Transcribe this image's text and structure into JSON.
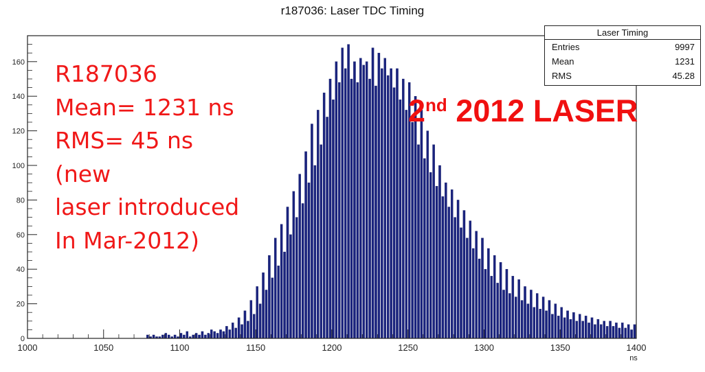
{
  "chart_data": {
    "type": "bar",
    "title": "r187036: Laser TDC Timing",
    "xlabel": "ns",
    "ylabel": "",
    "xlim": [
      1000,
      1400
    ],
    "ylim": [
      0,
      175
    ],
    "xticks": [
      "1000",
      "1050",
      "1100",
      "1150",
      "1200",
      "1250",
      "1300",
      "1350",
      "1400"
    ],
    "yticks": [
      "0",
      "20",
      "40",
      "60",
      "80",
      "100",
      "120",
      "140",
      "160"
    ],
    "series": [
      {
        "name": "Laser Timing",
        "color": "#1a237e",
        "bin_width": 2,
        "x": [
          1000,
          1002,
          1004,
          1006,
          1008,
          1010,
          1012,
          1014,
          1016,
          1018,
          1020,
          1022,
          1024,
          1026,
          1028,
          1030,
          1032,
          1034,
          1036,
          1038,
          1040,
          1042,
          1044,
          1046,
          1048,
          1050,
          1052,
          1054,
          1056,
          1058,
          1060,
          1062,
          1064,
          1066,
          1068,
          1070,
          1072,
          1074,
          1076,
          1078,
          1080,
          1082,
          1084,
          1086,
          1088,
          1090,
          1092,
          1094,
          1096,
          1098,
          1100,
          1102,
          1104,
          1106,
          1108,
          1110,
          1112,
          1114,
          1116,
          1118,
          1120,
          1122,
          1124,
          1126,
          1128,
          1130,
          1132,
          1134,
          1136,
          1138,
          1140,
          1142,
          1144,
          1146,
          1148,
          1150,
          1152,
          1154,
          1156,
          1158,
          1160,
          1162,
          1164,
          1166,
          1168,
          1170,
          1172,
          1174,
          1176,
          1178,
          1180,
          1182,
          1184,
          1186,
          1188,
          1190,
          1192,
          1194,
          1196,
          1198,
          1200,
          1202,
          1204,
          1206,
          1208,
          1210,
          1212,
          1214,
          1216,
          1218,
          1220,
          1222,
          1224,
          1226,
          1228,
          1230,
          1232,
          1234,
          1236,
          1238,
          1240,
          1242,
          1244,
          1246,
          1248,
          1250,
          1252,
          1254,
          1256,
          1258,
          1260,
          1262,
          1264,
          1266,
          1268,
          1270,
          1272,
          1274,
          1276,
          1278,
          1280,
          1282,
          1284,
          1286,
          1288,
          1290,
          1292,
          1294,
          1296,
          1298,
          1300,
          1302,
          1304,
          1306,
          1308,
          1310,
          1312,
          1314,
          1316,
          1318,
          1320,
          1322,
          1324,
          1326,
          1328,
          1330,
          1332,
          1334,
          1336,
          1338,
          1340,
          1342,
          1344,
          1346,
          1348,
          1350,
          1352,
          1354,
          1356,
          1358,
          1360,
          1362,
          1364,
          1366,
          1368,
          1370,
          1372,
          1374,
          1376,
          1378,
          1380,
          1382,
          1384,
          1386,
          1388,
          1390,
          1392,
          1394,
          1396,
          1398
        ],
        "values": [
          0,
          0,
          0,
          0,
          0,
          0,
          0,
          0,
          0,
          0,
          0,
          0,
          0,
          0,
          0,
          0,
          0,
          0,
          0,
          0,
          0,
          0,
          0,
          0,
          0,
          0,
          0,
          0,
          0,
          0,
          0,
          0,
          0,
          0,
          0,
          0,
          0,
          0,
          0,
          2,
          1,
          2,
          1,
          1,
          2,
          3,
          2,
          1,
          2,
          1,
          3,
          2,
          4,
          1,
          2,
          3,
          2,
          4,
          2,
          3,
          5,
          4,
          3,
          5,
          4,
          7,
          5,
          9,
          6,
          12,
          8,
          16,
          10,
          22,
          14,
          30,
          20,
          38,
          28,
          48,
          35,
          58,
          42,
          66,
          50,
          76,
          60,
          85,
          70,
          95,
          78,
          108,
          90,
          124,
          100,
          132,
          112,
          142,
          128,
          150,
          138,
          160,
          148,
          168,
          156,
          170,
          150,
          160,
          148,
          162,
          158,
          160,
          150,
          168,
          146,
          165,
          156,
          162,
          152,
          156,
          145,
          156,
          138,
          150,
          132,
          148,
          125,
          140,
          112,
          132,
          104,
          120,
          96,
          112,
          88,
          100,
          82,
          90,
          76,
          86,
          70,
          80,
          64,
          74,
          58,
          68,
          52,
          62,
          46,
          58,
          40,
          52,
          36,
          48,
          32,
          44,
          28,
          40,
          26,
          36,
          24,
          34,
          22,
          30,
          20,
          28,
          18,
          26,
          17,
          24,
          16,
          22,
          14,
          20,
          13,
          18,
          12,
          16,
          11,
          15,
          10,
          14,
          10,
          13,
          9,
          12,
          8,
          11,
          8,
          10,
          7,
          10,
          7,
          9,
          6,
          9,
          6,
          8,
          5,
          8
        ]
      }
    ],
    "grid": false
  },
  "stats_box": {
    "header": "Laser Timing",
    "rows": [
      {
        "label": "Entries",
        "value": "9997"
      },
      {
        "label": "Mean",
        "value": "1231"
      },
      {
        "label": "RMS",
        "value": "45.28"
      }
    ]
  },
  "annotation": {
    "lines": [
      "R187036",
      "Mean= 1231 ns",
      "RMS= 45 ns",
      "(new",
      "laser introduced",
      "In Mar-2012)"
    ],
    "color": "#f01818"
  },
  "laser_label": {
    "ordinal": "2",
    "ordinal_suffix": "nd",
    "rest": "2012 LASER",
    "color": "#f01010"
  }
}
